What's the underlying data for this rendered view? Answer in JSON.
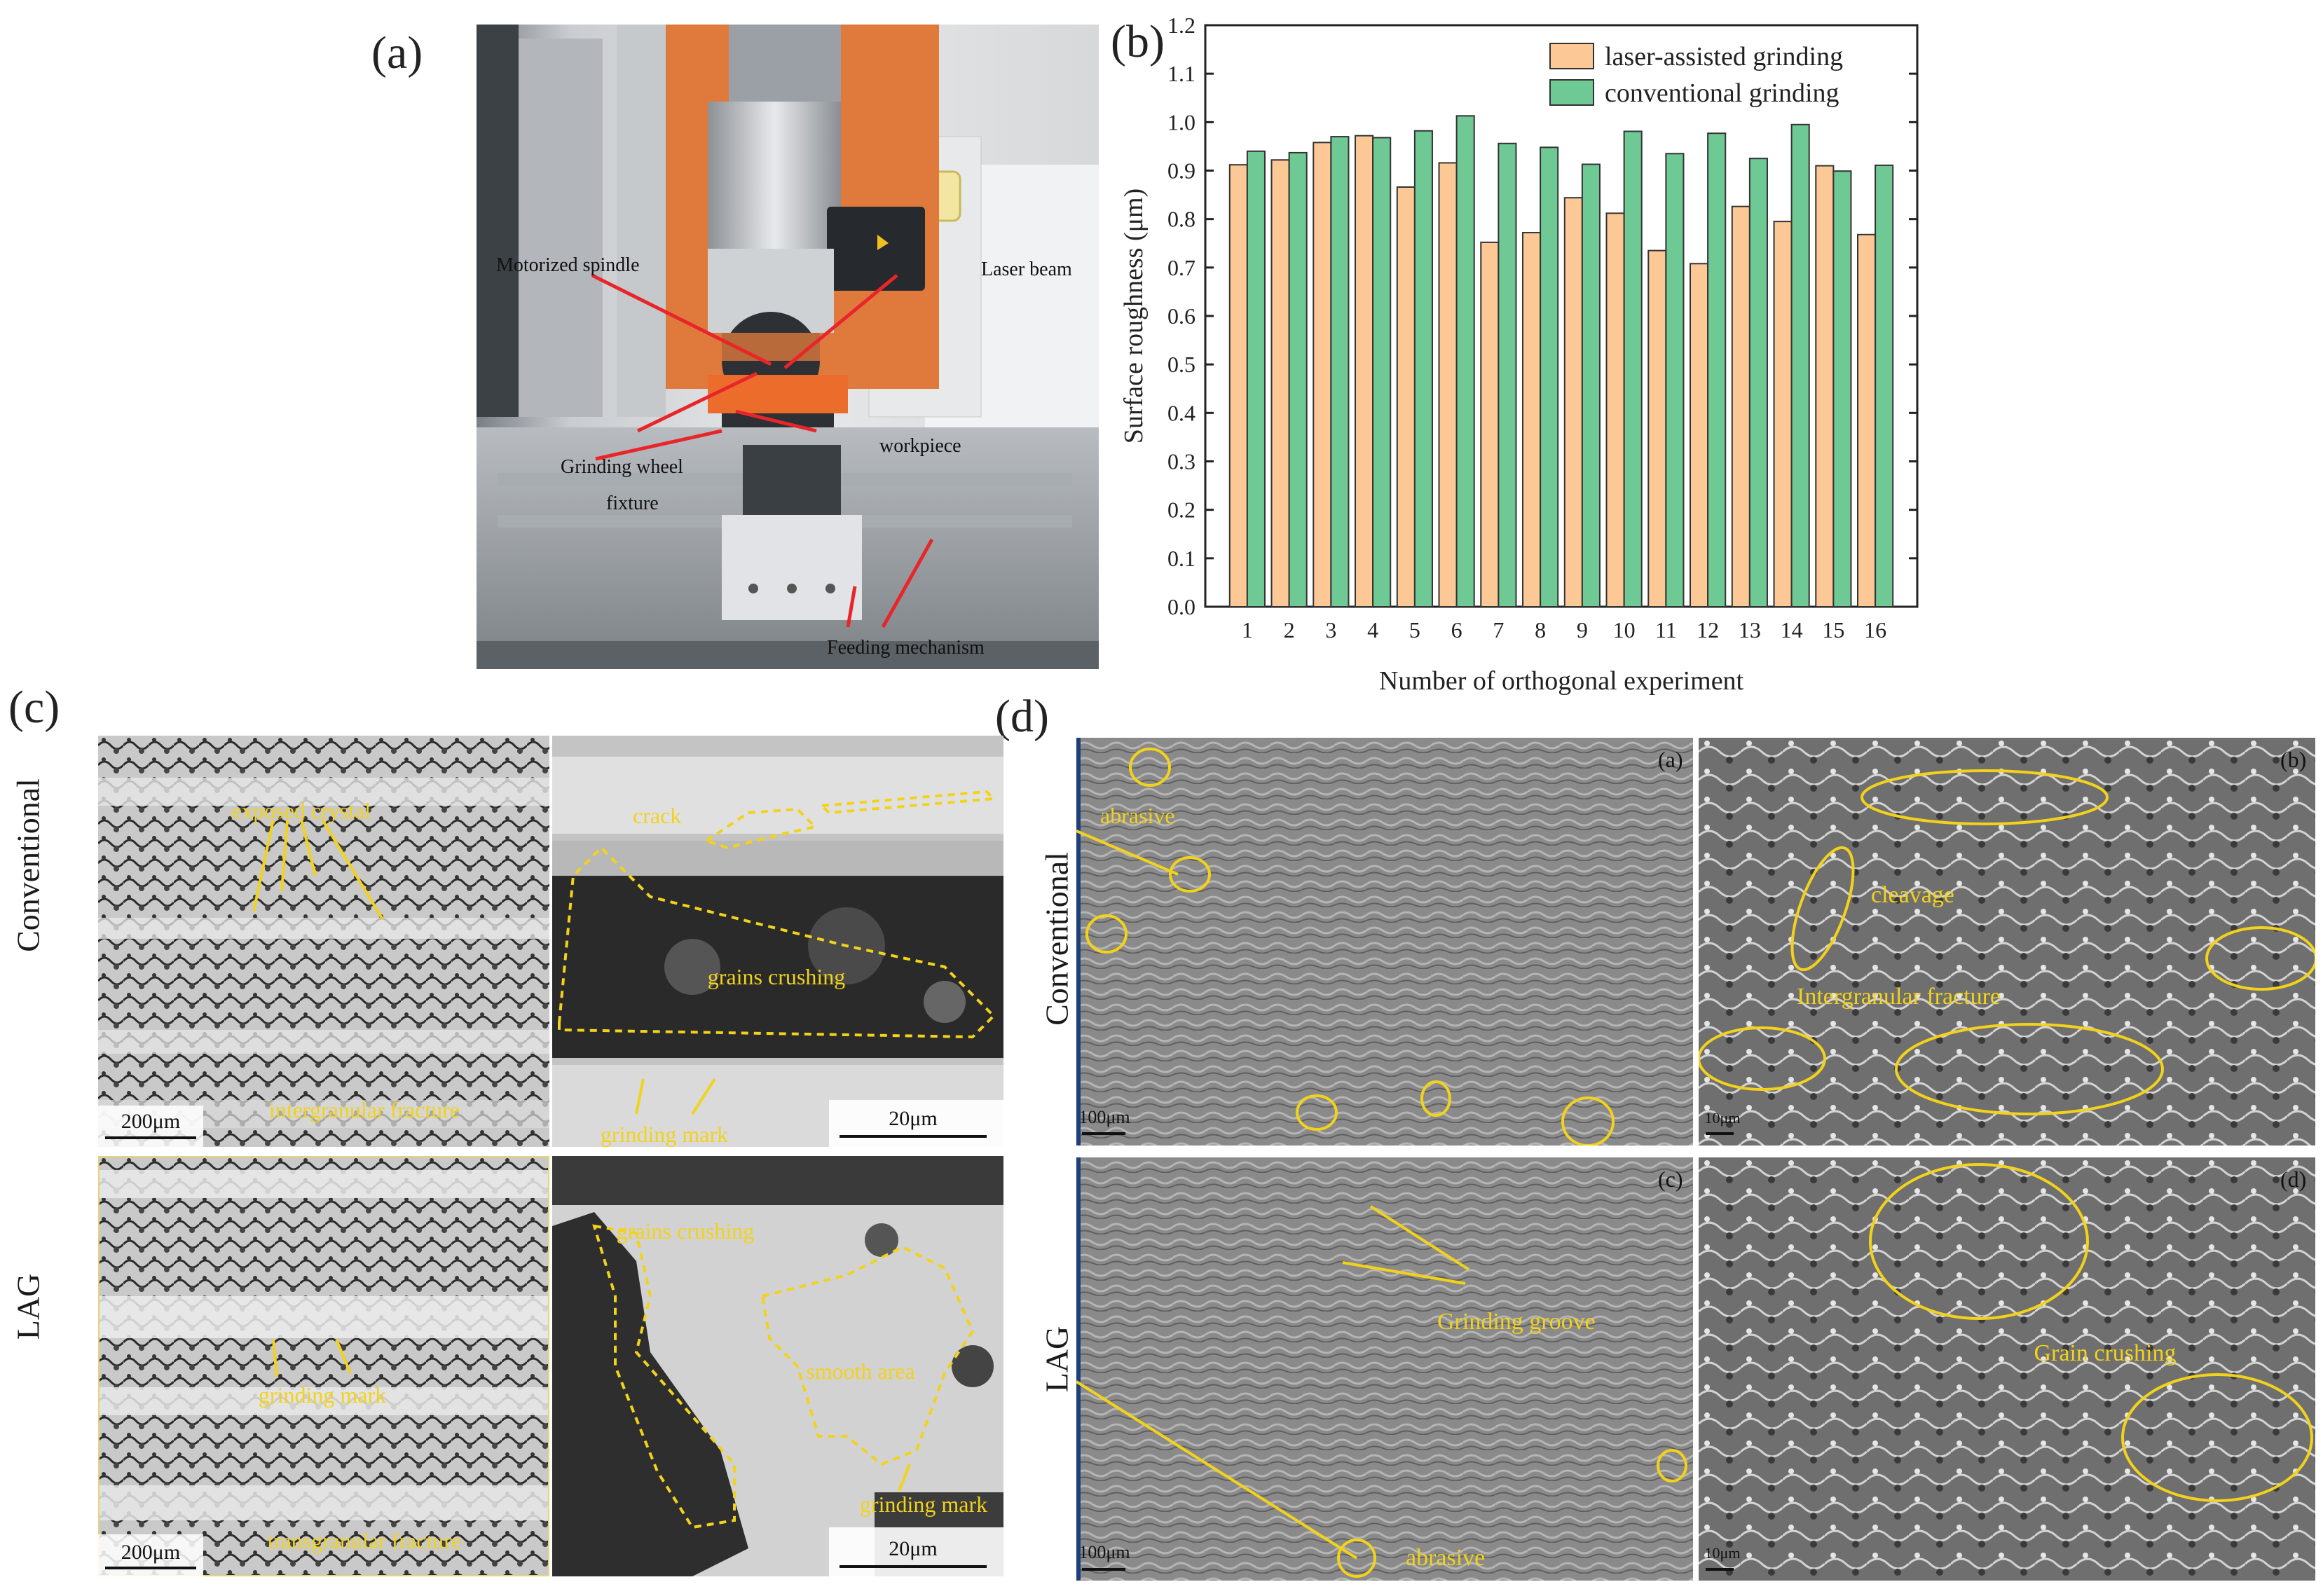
{
  "panels": {
    "a": {
      "letter": "(a)",
      "labels": {
        "spindle": "Motorized spindle",
        "laser": "Laser beam",
        "wheel": "Grinding wheel",
        "workpiece": "workpiece",
        "fixture": "fixture",
        "feeding": "Feeding mechanism"
      }
    },
    "b": {
      "letter": "(b)"
    },
    "c": {
      "letter": "(c)",
      "row_labels": [
        "Conventional",
        "LAG"
      ],
      "tiles": {
        "tl": {
          "annotations": [
            "exposed crystal",
            "intergranular fracture"
          ],
          "scale": "200μm"
        },
        "tr": {
          "annotations": [
            "crack",
            "grains crushing",
            "grinding mark"
          ],
          "scale": "20μm"
        },
        "bl": {
          "annotations": [
            "grinding mark",
            "transgranular fracture"
          ],
          "scale": "200μm"
        },
        "br": {
          "annotations": [
            "grains crushing",
            "smooth area",
            "grinding mark"
          ],
          "scale": "20μm"
        }
      }
    },
    "d": {
      "letter": "(d)",
      "row_labels": [
        "Conventional",
        "LAG"
      ],
      "tiles": {
        "a": {
          "tag": "(a)",
          "annotations": [
            "abrasive"
          ],
          "scale": "100μm"
        },
        "b": {
          "tag": "(b)",
          "annotations": [
            "cleavage",
            "Intergranular fracture"
          ],
          "scale": "10μm"
        },
        "c": {
          "tag": "(c)",
          "annotations": [
            "Grinding groove",
            "abrasive"
          ],
          "scale": "100μm"
        },
        "d": {
          "tag": "(d)",
          "annotations": [
            "Grain crushing"
          ],
          "scale": "10μm"
        }
      }
    }
  },
  "colors": {
    "laser_assisted": "#fcc996",
    "conventional": "#6fc995",
    "annotation": "#f2d21b",
    "leader": "#e8262a"
  },
  "chart_data": {
    "type": "bar",
    "categories": [
      "1",
      "2",
      "3",
      "4",
      "5",
      "6",
      "7",
      "8",
      "9",
      "10",
      "11",
      "12",
      "13",
      "14",
      "15",
      "16"
    ],
    "series": [
      {
        "name": "laser-assisted grinding",
        "color": "#fcc996",
        "values": [
          0.912,
          0.922,
          0.958,
          0.972,
          0.866,
          0.916,
          0.752,
          0.772,
          0.844,
          0.812,
          0.735,
          0.708,
          0.826,
          0.795,
          0.91,
          0.768
        ]
      },
      {
        "name": "conventional grinding",
        "color": "#6fc995",
        "values": [
          0.94,
          0.937,
          0.97,
          0.968,
          0.982,
          1.013,
          0.956,
          0.948,
          0.913,
          0.981,
          0.935,
          0.977,
          0.925,
          0.995,
          0.899,
          0.911
        ]
      }
    ],
    "xlabel": "Number of orthogonal experiment",
    "ylabel": "Surface roughness (μm)",
    "yticks": [
      "0.0",
      "0.1",
      "0.2",
      "0.3",
      "0.4",
      "0.5",
      "0.6",
      "0.7",
      "0.8",
      "0.9",
      "1.0",
      "1.1",
      "1.2"
    ],
    "ylim": [
      0,
      1.2
    ],
    "legend": "top-right",
    "grid": false
  }
}
